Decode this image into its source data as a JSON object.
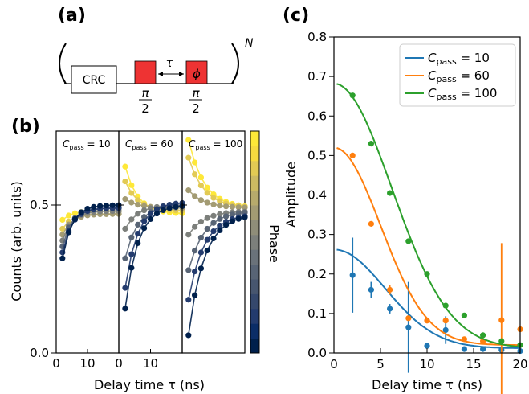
{
  "panels": {
    "a": {
      "label": "(a)",
      "box_label": "CRC",
      "pulse1_top": "π",
      "pulse1_bottom": "2",
      "pulse2_label": "ϕ",
      "pulse3_top": "π",
      "pulse3_bottom": "2",
      "tau_label": "τ",
      "repeat_label": "N",
      "pulse_color": "#ee3333"
    },
    "b": {
      "label": "(b)"
    },
    "c": {
      "label": "(c)"
    }
  },
  "chart_data": [
    {
      "type": "scatter",
      "panel": "b",
      "ylabel": "Counts (arb. units)",
      "xlabel": "Delay time τ (ns)",
      "ylim": [
        0,
        0.75
      ],
      "yticks": [
        "0.0",
        "0.5"
      ],
      "colorbar_label": "Phase",
      "colorbar_colors": [
        "#00204c",
        "#0b2d67",
        "#233b6e",
        "#35486c",
        "#47566f",
        "#586475",
        "#6a727a",
        "#7c7f7b",
        "#8f8d79",
        "#a39b73",
        "#b7aa6c",
        "#ccba62",
        "#e2ca54",
        "#f7db3f",
        "#fee838"
      ],
      "subpanels": [
        {
          "label": "C_pass = 10",
          "label_main": "C",
          "label_sub": "pass",
          "label_rest": " = 10",
          "x": [
            2,
            4,
            6,
            8,
            10,
            12,
            14,
            16,
            18,
            20
          ],
          "xlim": [
            0,
            20
          ],
          "xticks": [
            "0",
            "10"
          ],
          "curves": [
            {
              "start": 0.45,
              "end": 0.48,
              "tau": 3
            },
            {
              "start": 0.42,
              "end": 0.47,
              "tau": 3
            },
            {
              "start": 0.4,
              "end": 0.47,
              "tau": 3
            },
            {
              "start": 0.38,
              "end": 0.48,
              "tau": 3
            },
            {
              "start": 0.36,
              "end": 0.49,
              "tau": 3
            },
            {
              "start": 0.34,
              "end": 0.49,
              "tau": 3
            },
            {
              "start": 0.32,
              "end": 0.5,
              "tau": 3
            }
          ]
        },
        {
          "label": "C_pass = 60",
          "label_main": "C",
          "label_sub": "pass",
          "label_rest": " = 60",
          "x": [
            2,
            4,
            6,
            8,
            10,
            12,
            14,
            16,
            18,
            20
          ],
          "xlim": [
            0,
            20
          ],
          "xticks": [
            "0",
            "10"
          ],
          "curves": [
            {
              "start": 0.63,
              "end": 0.47,
              "tau": 4
            },
            {
              "start": 0.58,
              "end": 0.48,
              "tau": 4
            },
            {
              "start": 0.52,
              "end": 0.49,
              "tau": 4
            },
            {
              "start": 0.42,
              "end": 0.5,
              "tau": 4
            },
            {
              "start": 0.32,
              "end": 0.5,
              "tau": 4
            },
            {
              "start": 0.22,
              "end": 0.51,
              "tau": 4
            },
            {
              "start": 0.15,
              "end": 0.5,
              "tau": 4
            }
          ]
        },
        {
          "label": "C_pass = 100",
          "label_main": "C",
          "label_sub": "pass",
          "label_rest": " = 100",
          "x": [
            2,
            4,
            6,
            8,
            10,
            12,
            14,
            16,
            18,
            20
          ],
          "xlim": [
            0,
            20
          ],
          "xticks": [],
          "curves": [
            {
              "start": 0.72,
              "end": 0.49,
              "tau": 5
            },
            {
              "start": 0.66,
              "end": 0.49,
              "tau": 5
            },
            {
              "start": 0.55,
              "end": 0.49,
              "tau": 5
            },
            {
              "start": 0.4,
              "end": 0.48,
              "tau": 5
            },
            {
              "start": 0.28,
              "end": 0.48,
              "tau": 5
            },
            {
              "start": 0.18,
              "end": 0.47,
              "tau": 5
            },
            {
              "start": 0.06,
              "end": 0.47,
              "tau": 5
            }
          ]
        }
      ]
    },
    {
      "type": "line",
      "panel": "c",
      "xlabel": "Delay time τ (ns)",
      "ylabel": "Amplitude",
      "xlim": [
        0,
        20
      ],
      "ylim": [
        0,
        0.8
      ],
      "xticks": [
        "0",
        "5",
        "10",
        "15",
        "20"
      ],
      "yticks": [
        "0.0",
        "0.1",
        "0.2",
        "0.3",
        "0.4",
        "0.5",
        "0.6",
        "0.7",
        "0.8"
      ],
      "legend_position": "top-right",
      "series": [
        {
          "name": "C_pass = 10",
          "legend_main": "C",
          "legend_sub": "pass",
          "legend_rest": " = 10",
          "color": "#1f77b4",
          "fit": {
            "a": 0.25,
            "sigma": 5.5,
            "c": 0.012
          },
          "x": [
            2,
            4,
            6,
            8,
            10,
            12,
            14,
            16,
            18,
            20
          ],
          "y": [
            0.197,
            0.16,
            0.112,
            0.065,
            0.018,
            0.058,
            0.01,
            0.01,
            0.008,
            0.005
          ],
          "err": [
            0.095,
            0.02,
            0.012,
            0.115,
            0,
            0.035,
            0,
            0,
            0,
            0
          ]
        },
        {
          "name": "C_pass = 60",
          "legend_main": "C",
          "legend_sub": "pass",
          "legend_rest": " = 60",
          "color": "#ff7f0e",
          "fit": {
            "a": 0.5,
            "sigma": 5.0,
            "c": 0.02
          },
          "x": [
            2,
            4,
            6,
            8,
            10,
            12,
            14,
            16,
            18,
            20
          ],
          "y": [
            0.5,
            0.327,
            0.16,
            0.088,
            0.082,
            0.082,
            0.035,
            0.03,
            0.083,
            0.06
          ],
          "err": [
            0,
            0,
            0.012,
            0,
            0,
            0,
            0,
            0,
            0.195,
            0
          ]
        },
        {
          "name": "C_pass = 100",
          "legend_main": "C",
          "legend_sub": "pass",
          "legend_rest": " = 100",
          "color": "#2ca02c",
          "fit": {
            "a": 0.67,
            "sigma": 6.2,
            "c": 0.012
          },
          "x": [
            2,
            4,
            6,
            8,
            10,
            12,
            14,
            16,
            18,
            20
          ],
          "y": [
            0.652,
            0.53,
            0.405,
            0.283,
            0.2,
            0.12,
            0.095,
            0.045,
            0.03,
            0.02
          ],
          "err": [
            0,
            0,
            0,
            0,
            0,
            0,
            0,
            0,
            0,
            0
          ]
        }
      ]
    }
  ]
}
